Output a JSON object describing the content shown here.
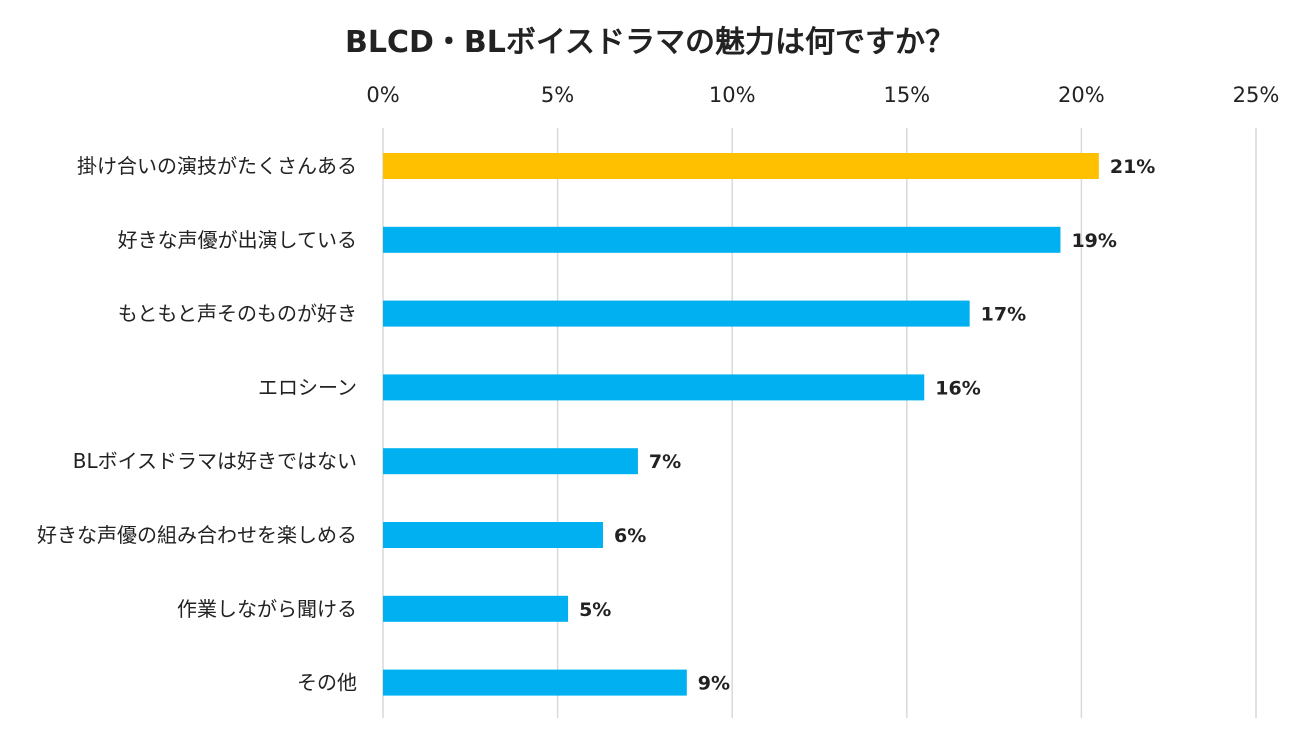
{
  "chart_data": {
    "type": "bar",
    "orientation": "horizontal",
    "title": "BLCD・BLボイスドラマの魅力は何ですか？",
    "categories": [
      "掛け合いの演技がたくさんある",
      "好きな声優が出演している",
      "もともと声そのものが好き",
      "エロシーン",
      "BLボイスドラマは好きではない",
      "好きな声優の組み合わせを楽しめる",
      "作業しながら聞ける",
      "その他"
    ],
    "values": [
      20.5,
      19.4,
      16.8,
      15.5,
      7.3,
      6.3,
      5.3,
      8.7
    ],
    "value_labels": [
      "21%",
      "19%",
      "17%",
      "16%",
      "7%",
      "6%",
      "5%",
      "9%"
    ],
    "xlim": [
      0,
      25
    ],
    "xticks": [
      0,
      5,
      10,
      15,
      20,
      25
    ],
    "tick_labels": [
      "0%",
      "5%",
      "10%",
      "15%",
      "20%",
      "25%"
    ],
    "axis_position": "top",
    "grid": true,
    "highlight_index": 0,
    "colors": {
      "highlight": "#FFC000",
      "default": "#00B0F0",
      "grid": "#D9D9D9",
      "text": "#222222"
    },
    "xlabel": "",
    "ylabel": ""
  }
}
